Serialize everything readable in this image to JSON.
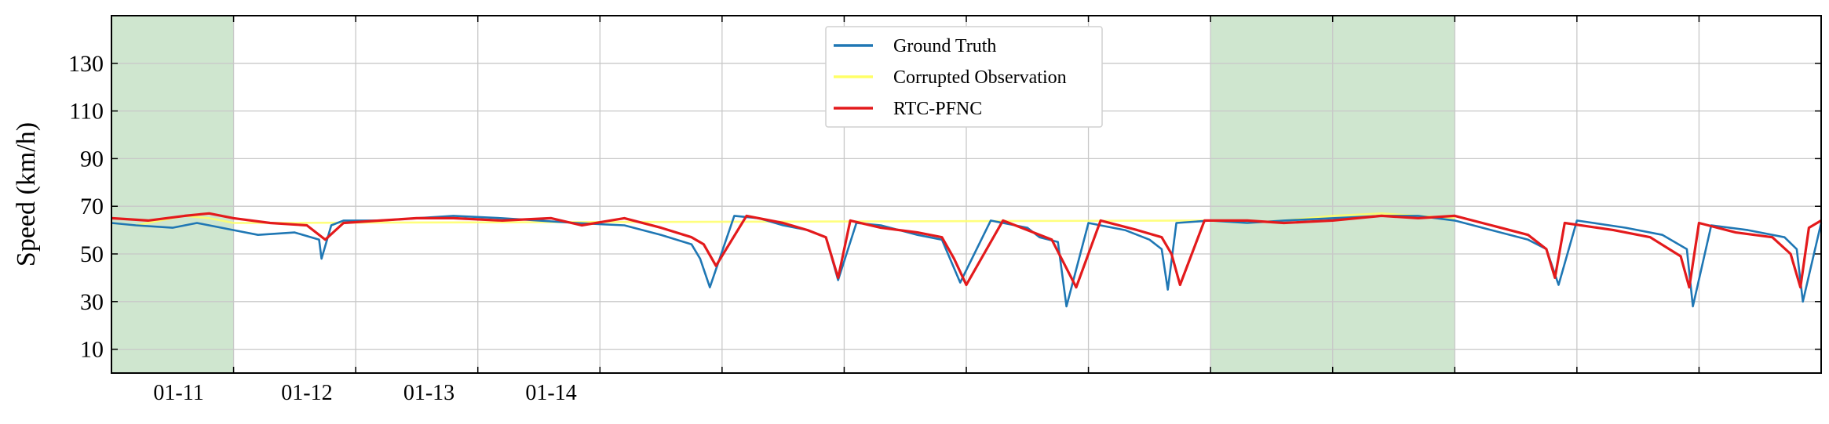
{
  "chart_data": {
    "type": "line",
    "title": "",
    "ylabel": "Speed (km/h)",
    "xlabel": "",
    "xlim": [
      0,
      14
    ],
    "ylim": [
      0,
      150
    ],
    "yticks": [
      10,
      30,
      50,
      70,
      90,
      110,
      130
    ],
    "xticks": [
      1,
      2,
      3,
      4,
      5,
      6,
      7,
      8,
      9,
      10,
      11,
      12,
      13,
      14
    ],
    "xtick_labels": [
      {
        "x": 0.55,
        "label": "01-11"
      },
      {
        "x": 1.6,
        "label": "01-12"
      },
      {
        "x": 2.6,
        "label": "01-13"
      },
      {
        "x": 3.6,
        "label": "01-14"
      }
    ],
    "grid": true,
    "legend_position": "top-center",
    "shaded_regions": [
      {
        "x0": 0,
        "x1": 1.0,
        "color": "#cfe6cf"
      },
      {
        "x0": 9.0,
        "x1": 11.0,
        "color": "#cfe6cf"
      }
    ],
    "series": [
      {
        "name": "Ground Truth",
        "color": "#1f77b4",
        "x": [
          0,
          0.2,
          0.5,
          0.7,
          1.0,
          1.2,
          1.5,
          1.7,
          1.72,
          1.8,
          1.9,
          2.2,
          2.5,
          2.8,
          3.2,
          3.5,
          3.8,
          4.2,
          4.5,
          4.75,
          4.82,
          4.9,
          5.1,
          5.3,
          5.5,
          5.7,
          5.85,
          5.95,
          6.1,
          6.3,
          6.6,
          6.8,
          6.95,
          7.2,
          7.5,
          7.6,
          7.75,
          7.82,
          8.0,
          8.3,
          8.5,
          8.6,
          8.65,
          8.72,
          9.0,
          9.3,
          9.6,
          10.0,
          10.4,
          10.7,
          11.0,
          11.3,
          11.6,
          11.75,
          11.85,
          12.0,
          12.4,
          12.7,
          12.9,
          12.95,
          13.1,
          13.4,
          13.7,
          13.8,
          13.85,
          14.0
        ],
        "y": [
          63,
          62,
          61,
          63,
          60,
          58,
          59,
          56,
          48,
          62,
          64,
          64,
          65,
          66,
          65,
          64,
          63,
          62,
          58,
          54,
          48,
          36,
          66,
          65,
          62,
          60,
          57,
          39,
          63,
          62,
          58,
          56,
          38,
          64,
          61,
          57,
          55,
          28,
          63,
          60,
          56,
          52,
          35,
          63,
          64,
          63,
          64,
          65,
          66,
          66,
          64,
          60,
          56,
          52,
          37,
          64,
          61,
          58,
          52,
          28,
          62,
          60,
          57,
          52,
          30,
          63
        ]
      },
      {
        "name": "Corrupted Observation",
        "color": "#ffff66",
        "x": [
          0,
          0.2,
          0.4,
          0.6,
          0.8,
          1.0,
          9.0,
          9.3,
          9.6,
          10.0,
          10.4,
          10.7,
          11.0
        ],
        "y": [
          63,
          62,
          64,
          66,
          65,
          63,
          64,
          63,
          64,
          66,
          67,
          66,
          65
        ]
      },
      {
        "name": "RTC-PFNC",
        "color": "#e31a1c",
        "x": [
          0,
          0.3,
          0.6,
          0.8,
          1.0,
          1.3,
          1.6,
          1.75,
          1.9,
          2.2,
          2.5,
          2.8,
          3.2,
          3.6,
          3.85,
          4.2,
          4.5,
          4.75,
          4.85,
          4.95,
          5.2,
          5.5,
          5.7,
          5.85,
          5.95,
          6.05,
          6.3,
          6.6,
          6.8,
          6.9,
          7.0,
          7.3,
          7.55,
          7.7,
          7.8,
          7.9,
          8.1,
          8.4,
          8.6,
          8.68,
          8.75,
          8.95,
          9.3,
          9.6,
          10.0,
          10.4,
          10.7,
          11.0,
          11.3,
          11.6,
          11.75,
          11.82,
          11.9,
          12.3,
          12.6,
          12.85,
          12.92,
          13.0,
          13.3,
          13.6,
          13.75,
          13.83,
          13.9,
          14.0
        ],
        "y": [
          65,
          64,
          66,
          67,
          65,
          63,
          62,
          56,
          63,
          64,
          65,
          65,
          64,
          65,
          62,
          65,
          61,
          57,
          54,
          45,
          66,
          63,
          60,
          57,
          40,
          64,
          61,
          59,
          57,
          48,
          37,
          64,
          59,
          56,
          46,
          36,
          64,
          60,
          57,
          50,
          37,
          64,
          64,
          63,
          64,
          66,
          65,
          66,
          62,
          58,
          52,
          40,
          63,
          60,
          57,
          49,
          36,
          63,
          59,
          57,
          50,
          36,
          61,
          64
        ]
      }
    ]
  }
}
